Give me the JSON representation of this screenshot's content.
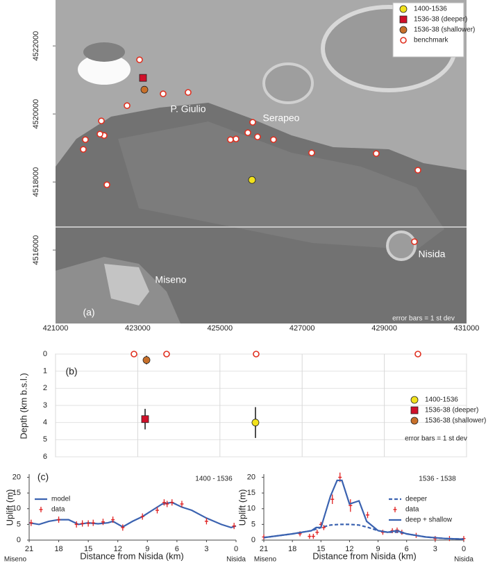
{
  "chart_data": [
    {
      "type": "scatter",
      "panel_label": "(a)",
      "note": "error bars = 1 st dev",
      "annotations": [
        "P. Giulio",
        "Serapeo",
        "Nisida",
        "Miseno"
      ],
      "xlim": [
        421000,
        431000
      ],
      "ylim": [
        4513840,
        4523350
      ],
      "yticks": [
        4516000,
        4518000,
        4520000,
        4522000
      ],
      "ytick_rotation": 90,
      "grid": false,
      "legend": "upper right",
      "series": [
        {
          "name": "1400-1536",
          "color": "#f2e21c",
          "marker": "circle",
          "x": [
            425780
          ],
          "values": [
            4518060
          ]
        },
        {
          "name": "1536-38 (deeper)",
          "color": "#d0102a",
          "marker": "square",
          "x": [
            423128
          ],
          "values": [
            4521061
          ]
        },
        {
          "name": "1536-38 (shallower)",
          "color": "#c8702a",
          "marker": "circle",
          "x": [
            423162
          ],
          "values": [
            4520714
          ]
        },
        {
          "name": "benchmark",
          "color": "#e03020",
          "marker": "open-circle",
          "x": [
            423044,
            422740,
            423618,
            424226,
            422115,
            422182,
            422081,
            421726,
            421676,
            422250,
            425256,
            425391,
            425679,
            425797,
            425915,
            426303,
            427232,
            428803,
            429817,
            429732
          ],
          "values": [
            4521592,
            4520245,
            4520592,
            4520633,
            4519796,
            4519367,
            4519408,
            4519245,
            4518959,
            4517918,
            4519245,
            4519265,
            4519449,
            4519755,
            4519327,
            4519245,
            4518857,
            4518837,
            4518347,
            4516245
          ]
        }
      ]
    },
    {
      "type": "scatter",
      "panel_label": "(b)",
      "note": "error bars = 1 st dev",
      "y_label": "Depth (km b.s.l.)",
      "xlim": [
        421000,
        431000
      ],
      "xticks": [
        421000,
        423000,
        425000,
        427000,
        429000,
        431000
      ],
      "xaxis_position": "top",
      "ylim": [
        6,
        0
      ],
      "yticks": [
        0,
        1,
        2,
        3,
        4,
        5,
        6
      ],
      "grid": true,
      "legend": "right",
      "series": [
        {
          "name": "1400-1536",
          "color": "#f2e21c",
          "marker": "circle",
          "x": [
            425864
          ],
          "values": [
            4.0
          ],
          "errors": [
            0.9
          ]
        },
        {
          "name": "1536-38 (deeper)",
          "color": "#d0102a",
          "marker": "square",
          "x": [
            423179
          ],
          "values": [
            3.8
          ],
          "errors": [
            0.6
          ]
        },
        {
          "name": "1536-38 (shallower)",
          "color": "#c8702a",
          "marker": "circle",
          "x": [
            423213
          ],
          "values": [
            0.35
          ],
          "errors": [
            0.25
          ]
        },
        {
          "color": "#e03020",
          "marker": "open-circle",
          "x": [
            422909,
            423702,
            425881,
            429817
          ],
          "values": [
            0,
            0,
            0,
            0
          ]
        }
      ]
    },
    {
      "type": "line",
      "panel_label": "(c)",
      "subtitle": "1400  - 1536",
      "x_label": "Distance from Nisida (km)",
      "y_label": "Uplift (m)",
      "x_end_labels": [
        "Miseno",
        "Nisida"
      ],
      "xlim": [
        21,
        0
      ],
      "xticks": [
        21,
        18,
        15,
        12,
        9,
        6,
        3,
        0
      ],
      "ylim": [
        0,
        21
      ],
      "yticks": [
        0,
        5,
        10,
        15,
        20
      ],
      "grid": false,
      "legend": "upper left",
      "series": [
        {
          "name": "model",
          "color": "#3a62b0",
          "style": "line",
          "x": [
            21,
            20,
            19,
            18,
            17,
            16,
            15,
            14,
            13,
            12.5,
            11.5,
            10.5,
            9.5,
            8.5,
            7.5,
            6.5,
            5.5,
            4.5,
            3,
            1.5,
            0.5,
            0
          ],
          "values": [
            5.5,
            5,
            6,
            6.5,
            6.5,
            5,
            5.5,
            5.2,
            5.5,
            6,
            4.2,
            6,
            7.5,
            9.5,
            11.5,
            12,
            10.5,
            9.5,
            7,
            5,
            4,
            4.5
          ]
        },
        {
          "name": "data",
          "color": "#e02020",
          "marker": "cross",
          "x": [
            20.8,
            18,
            16.2,
            15.6,
            15,
            14.5,
            13.5,
            12.5,
            11.5,
            9.5,
            8,
            7.3,
            7,
            6.5,
            5.5,
            3,
            0.2
          ],
          "values": [
            5.5,
            6.5,
            5,
            5.3,
            5.3,
            5.5,
            5.8,
            6.5,
            4,
            7.5,
            9.5,
            12,
            11.5,
            12,
            11.5,
            6,
            4.5
          ],
          "errors": [
            1,
            1,
            1,
            1,
            1,
            1,
            1,
            1,
            1,
            1,
            1,
            1,
            1,
            1,
            1,
            1,
            1
          ]
        }
      ]
    },
    {
      "type": "line",
      "subtitle": "1536 - 1538",
      "x_label": "Distance from Nisida (km)",
      "y_label": "Uplift (m)",
      "x_end_labels": [
        "Miseno",
        "Nisida"
      ],
      "xlim": [
        21,
        0
      ],
      "xticks": [
        21,
        18,
        15,
        12,
        9,
        6,
        3,
        0
      ],
      "ylim": [
        0,
        21
      ],
      "yticks": [
        0,
        5,
        10,
        15,
        20
      ],
      "grid": false,
      "legend": "right",
      "series": [
        {
          "name": "deeper",
          "color": "#3a62b0",
          "style": "dashed",
          "x": [
            21,
            18,
            16,
            15,
            14,
            13,
            12,
            11,
            10,
            9,
            8,
            7,
            6,
            4,
            2,
            0
          ],
          "values": [
            0.8,
            2,
            3,
            4,
            4.8,
            5,
            5,
            4.8,
            4,
            3,
            2.5,
            2.5,
            2,
            1,
            0.5,
            0.3
          ]
        },
        {
          "name": "data",
          "color": "#e02020",
          "marker": "cross",
          "x": [
            21,
            17.2,
            16.2,
            15.8,
            15.4,
            15,
            14.7,
            13.8,
            13,
            11.9,
            10.1,
            8.5,
            7.5,
            7,
            6.5,
            5,
            3,
            1.5,
            0
          ],
          "values": [
            1,
            2,
            1.2,
            1.2,
            2.5,
            5,
            4,
            13,
            20,
            11,
            8,
            2.5,
            3,
            3.2,
            2.5,
            1.5,
            0.5,
            0.5,
            0.5
          ],
          "errors": [
            0.8,
            0.8,
            0.8,
            0.8,
            0.8,
            0.8,
            0.8,
            1.5,
            1.5,
            2,
            1,
            0.8,
            0.8,
            0.8,
            0.8,
            0.8,
            0.8,
            0.8,
            0.8
          ]
        },
        {
          "name": "deep + shallow",
          "color": "#3a62b0",
          "style": "line",
          "x": [
            21,
            18,
            16,
            15.5,
            15,
            14,
            13.3,
            12.8,
            12,
            11,
            10.2,
            9,
            8,
            7,
            6,
            4,
            2,
            0
          ],
          "values": [
            0.8,
            2,
            3,
            4,
            4,
            14,
            19,
            19,
            11.5,
            12.5,
            6,
            3,
            2.5,
            3,
            2,
            1,
            0.5,
            0.3
          ]
        }
      ]
    }
  ]
}
